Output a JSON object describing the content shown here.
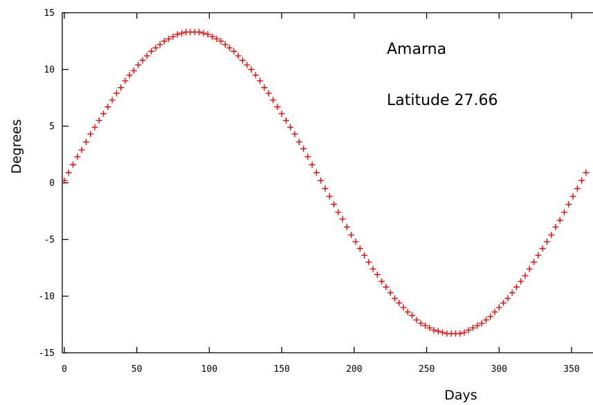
{
  "chart_data": {
    "type": "scatter",
    "xlabel": "Days",
    "ylabel": "Degrees",
    "xlim": [
      0,
      360
    ],
    "ylim": [
      -15,
      15
    ],
    "x_ticks": [
      0,
      50,
      100,
      150,
      200,
      250,
      300,
      350
    ],
    "y_ticks": [
      -15,
      -10,
      -5,
      0,
      5,
      10,
      15
    ],
    "grid": false,
    "marker": "+",
    "colors": {
      "series": "#ff0000",
      "axes": "#000000"
    },
    "annotations": [
      "Amarna",
      "Latitude 27.66"
    ],
    "series": [
      {
        "x": [
          0,
          3,
          6,
          9,
          12,
          15,
          18,
          21,
          24,
          27,
          30,
          33,
          36,
          39,
          42,
          45,
          48,
          51,
          54,
          57,
          60,
          63,
          66,
          69,
          72,
          75,
          78,
          81,
          84,
          87,
          90,
          93,
          96,
          99,
          102,
          105,
          108,
          111,
          114,
          117,
          120,
          123,
          126,
          129,
          132,
          135,
          138,
          141,
          144,
          147,
          150,
          153,
          156,
          159,
          162,
          165,
          168,
          171,
          174,
          177,
          180,
          183,
          186,
          189,
          192,
          195,
          198,
          201,
          204,
          207,
          210,
          213,
          216,
          219,
          222,
          225,
          228,
          231,
          234,
          237,
          240,
          243,
          246,
          249,
          252,
          255,
          258,
          261,
          264,
          267,
          270,
          273,
          276,
          279,
          282,
          285,
          288,
          291,
          294,
          297,
          300,
          303,
          306,
          309,
          312,
          315,
          318,
          321,
          324,
          327,
          330,
          333,
          336,
          339,
          342,
          345,
          348,
          351,
          354,
          357,
          360
        ],
        "y": [
          0.2,
          0.9,
          1.6,
          2.3,
          2.9,
          3.6,
          4.3,
          4.9,
          5.5,
          6.1,
          6.7,
          7.3,
          7.9,
          8.4,
          9.0,
          9.5,
          9.9,
          10.4,
          10.8,
          11.2,
          11.6,
          11.9,
          12.2,
          12.5,
          12.7,
          12.9,
          13.1,
          13.2,
          13.3,
          13.3,
          13.3,
          13.3,
          13.2,
          13.1,
          12.9,
          12.7,
          12.5,
          12.2,
          11.9,
          11.6,
          11.2,
          10.8,
          10.4,
          10.0,
          9.5,
          9.0,
          8.4,
          7.9,
          7.3,
          6.7,
          6.1,
          5.5,
          4.9,
          4.3,
          3.6,
          3.0,
          2.3,
          1.6,
          0.9,
          0.2,
          -0.5,
          -1.2,
          -1.9,
          -2.6,
          -3.2,
          -3.9,
          -4.6,
          -5.2,
          -5.8,
          -6.4,
          -7.0,
          -7.6,
          -8.1,
          -8.7,
          -9.2,
          -9.7,
          -10.2,
          -10.6,
          -11.0,
          -11.4,
          -11.7,
          -12.1,
          -12.4,
          -12.6,
          -12.8,
          -13.0,
          -13.1,
          -13.2,
          -13.3,
          -13.3,
          -13.3,
          -13.3,
          -13.2,
          -13.0,
          -12.8,
          -12.6,
          -12.4,
          -12.1,
          -11.8,
          -11.4,
          -11.0,
          -10.6,
          -10.2,
          -9.7,
          -9.2,
          -8.7,
          -8.2,
          -7.6,
          -7.0,
          -6.4,
          -5.8,
          -5.2,
          -4.6,
          -3.9,
          -3.3,
          -2.6,
          -1.9,
          -1.2,
          -0.5,
          0.2,
          0.9
        ]
      }
    ]
  }
}
